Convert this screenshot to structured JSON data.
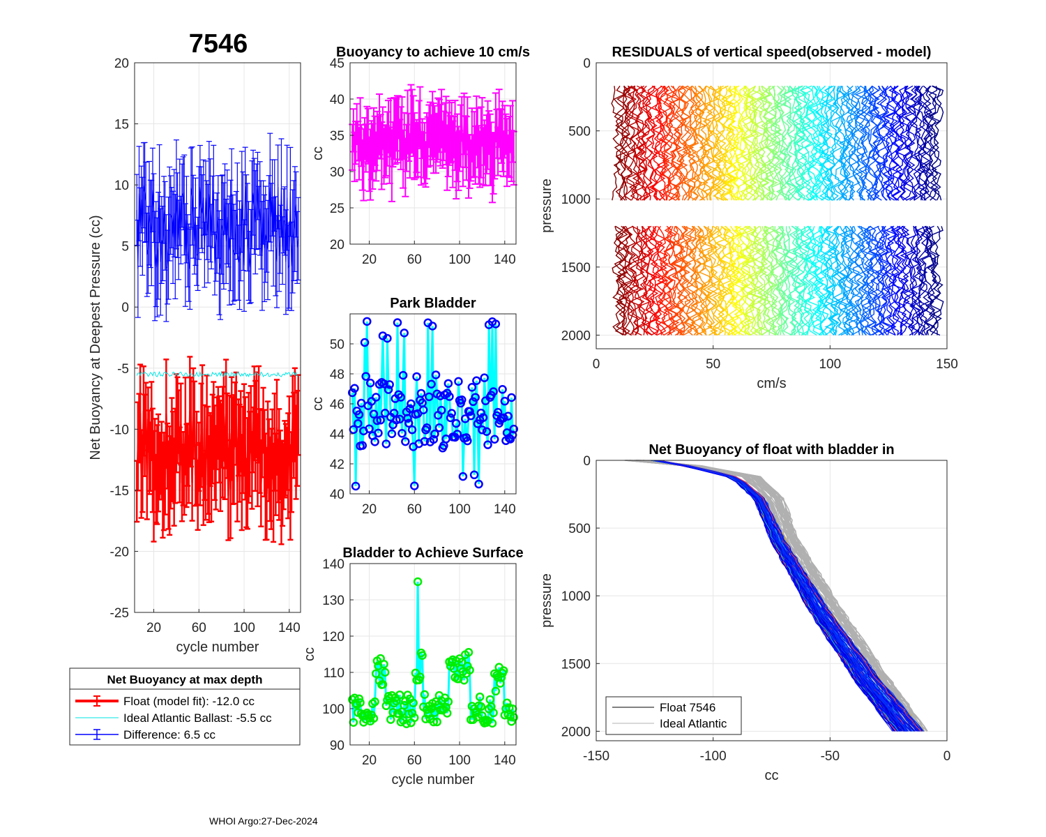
{
  "figure": {
    "float_id": "7546",
    "footer": "WHOI Argo:27-Dec-2024"
  },
  "legend_main": {
    "title": "Net Buoyancy at max depth",
    "entries": [
      {
        "label": "Float (model fit): -12.0 cc",
        "color": "#ff0000"
      },
      {
        "label": "Ideal Atlantic Ballast:  -5.5 cc",
        "color": "#00e5e5"
      },
      {
        "label": "Difference:   6.5 cc",
        "color": "#0000ff"
      }
    ]
  },
  "legend_profile": {
    "entries": [
      {
        "label": "Float 7546",
        "color": "#000000"
      },
      {
        "label": "Ideal Atlantic",
        "color": "#b0b0b0"
      }
    ]
  },
  "chart_data": [
    {
      "id": "net-buoyancy",
      "type": "line",
      "title": "",
      "xlabel": "cycle number",
      "ylabel": "Net Buoyancy at Deepest Pressure (cc)",
      "xlim": [
        3,
        150
      ],
      "ylim": [
        -25,
        20
      ],
      "xticks": [
        20,
        60,
        100,
        140
      ],
      "yticks": [
        20,
        15,
        10,
        5,
        0,
        -5,
        -10,
        -15,
        -20,
        -25
      ],
      "series": [
        {
          "name": "Float (model fit)",
          "color": "#ff0000",
          "mean": -12.0,
          "spread": 3.5,
          "err": 3.5
        },
        {
          "name": "Ideal Atlantic Ballast",
          "color": "#00e5e5",
          "mean": -5.5,
          "spread": 0.2,
          "err": 0
        },
        {
          "name": "Difference",
          "color": "#0000ff",
          "mean": 6.5,
          "spread": 3.5,
          "err": 3.5
        }
      ]
    },
    {
      "id": "buoyancy-10cms",
      "type": "line",
      "title": "Buoyancy to achieve 10 cm/s",
      "xlabel": "",
      "ylabel": "cc",
      "xlim": [
        3,
        150
      ],
      "ylim": [
        20,
        45
      ],
      "xticks": [
        20,
        60,
        100,
        140
      ],
      "yticks": [
        45,
        40,
        35,
        30,
        25,
        20
      ],
      "series": [
        {
          "name": "buoyancy",
          "color": "#ff00ff",
          "mean": 34,
          "spread": 3.5,
          "err": 4.5
        }
      ]
    },
    {
      "id": "park-bladder",
      "type": "line",
      "title": "Park Bladder",
      "xlabel": "",
      "ylabel": "cc",
      "xlim": [
        3,
        150
      ],
      "ylim": [
        40,
        52
      ],
      "xticks": [
        20,
        60,
        100,
        140
      ],
      "yticks": [
        50,
        48,
        46,
        44,
        42,
        40
      ],
      "series": [
        {
          "name": "park bladder",
          "line_color": "#00ffff",
          "marker_color": "#0000ff",
          "mean": 45.5,
          "spread": 2.5
        }
      ]
    },
    {
      "id": "bladder-surface",
      "type": "line",
      "title": "Bladder to Achieve Surface",
      "xlabel": "cycle number",
      "ylabel": "cc",
      "xlim": [
        3,
        150
      ],
      "ylim": [
        90,
        140
      ],
      "xticks": [
        20,
        60,
        100,
        140
      ],
      "yticks": [
        140,
        130,
        120,
        110,
        100,
        90
      ],
      "series": [
        {
          "name": "surface bladder",
          "line_color": "#00ffff",
          "marker_color": "#00ee00",
          "mean": 106,
          "spread": 6
        }
      ]
    },
    {
      "id": "residuals",
      "type": "line",
      "title": "RESIDUALS of vertical speed(observed - model)",
      "xlabel": "cm/s",
      "ylabel": "pressure",
      "xlim": [
        0,
        150
      ],
      "ylim": [
        0,
        2100
      ],
      "xticks": [
        0,
        50,
        100,
        150
      ],
      "yticks": [
        0,
        500,
        1000,
        1500,
        2000
      ],
      "segments": [
        [
          170,
          1010
        ],
        [
          1200,
          2000
        ]
      ],
      "offset_range": [
        9,
        146
      ]
    },
    {
      "id": "net-buoyancy-profile",
      "type": "line",
      "title": "Net Buoyancy of float with bladder in",
      "xlabel": "cc",
      "ylabel": "pressure",
      "xlim": [
        -150,
        0
      ],
      "ylim": [
        0,
        2070
      ],
      "xticks": [
        -150,
        -100,
        -50,
        0
      ],
      "yticks": [
        0,
        500,
        1000,
        1500,
        2000
      ],
      "ideal_profile": [
        [
          -135,
          0
        ],
        [
          -110,
          40
        ],
        [
          -85,
          120
        ],
        [
          -75,
          280
        ],
        [
          -68,
          600
        ],
        [
          -50,
          1100
        ],
        [
          -30,
          1600
        ],
        [
          -12,
          2030
        ]
      ],
      "float_profile": [
        [
          -125,
          0
        ],
        [
          -110,
          45
        ],
        [
          -90,
          130
        ],
        [
          -80,
          290
        ],
        [
          -72,
          600
        ],
        [
          -55,
          1100
        ],
        [
          -35,
          1600
        ],
        [
          -15,
          2030
        ]
      ]
    }
  ]
}
